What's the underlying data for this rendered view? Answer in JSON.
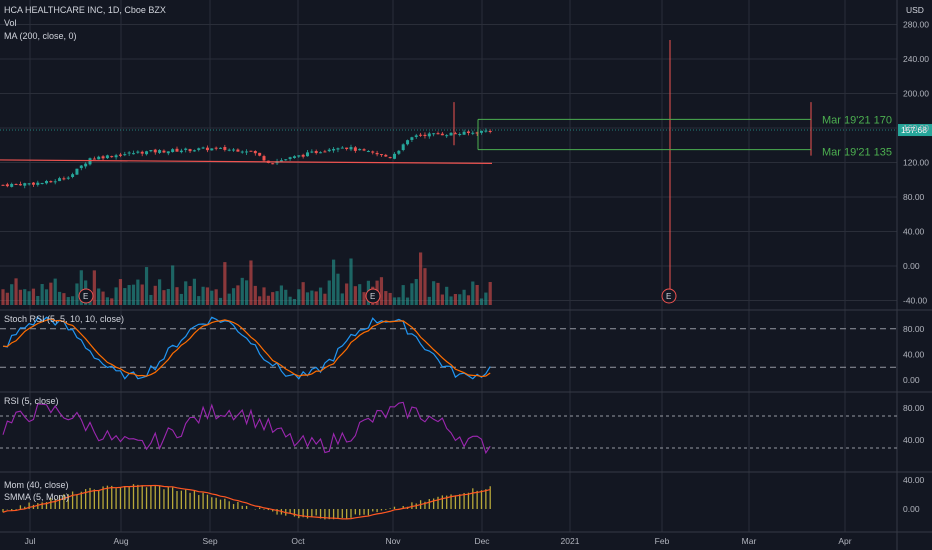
{
  "header": {
    "symbol_line": "HCA HEALTHCARE INC, 1D, Cboe BZX",
    "vol_label": "Vol",
    "ma_label": "MA (200, close, 0)",
    "currency": "USD",
    "current_price": "157.68"
  },
  "chart_data": [
    {
      "type": "candlestick",
      "panel": "price",
      "ylim": [
        -50,
        290
      ],
      "yticks": [
        280,
        240,
        200,
        160,
        120,
        80,
        40,
        0,
        -40
      ],
      "ytick_labels": [
        "280.00",
        "240.00",
        "200.00",
        "160.00",
        "120.00",
        "80.00",
        "40.00",
        "0.00",
        "-40.00"
      ],
      "x_labels": [
        "Jul",
        "Aug",
        "Sep",
        "Oct",
        "Nov",
        "Dec",
        "2021",
        "Feb",
        "Mar",
        "Apr"
      ],
      "price_close_approx": {
        "jul_start": 94,
        "jul_mid": 97,
        "aug_start": 125,
        "sep_start": 136,
        "sep_mid": 134,
        "sep_end": 120,
        "oct_start": 125,
        "oct_mid": 139,
        "nov_start": 126,
        "nov_mid": 153,
        "dec_start": 157.68
      },
      "ma200": {
        "start": 123,
        "end": 119
      },
      "annotations": [
        {
          "label": "Mar 19'21 170",
          "value": 170,
          "color": "#4caf50"
        },
        {
          "label": "Mar 19'21 135",
          "value": 135,
          "color": "#4caf50"
        }
      ],
      "earnings_markers": [
        "E",
        "E",
        "E"
      ],
      "grid": true
    },
    {
      "type": "line",
      "panel": "stoch_rsi",
      "title": "Stoch RSI (5, 5, 10, 10, close)",
      "ylim": [
        0,
        100
      ],
      "ytick_labels": [
        "80.00",
        "40.00",
        "0.00"
      ],
      "levels": [
        80,
        20
      ]
    },
    {
      "type": "line",
      "panel": "rsi",
      "title": "RSI (5, close)",
      "ylim": [
        10,
        95
      ],
      "ytick_labels": [
        "80.00",
        "40.00"
      ],
      "levels": [
        70,
        30
      ]
    },
    {
      "type": "bar",
      "panel": "momentum",
      "title": "Mom (40, close)",
      "subtitle": "SMMA (5, Mom)",
      "ylim": [
        -15,
        45
      ],
      "ytick_labels": [
        "40.00",
        "0.00"
      ]
    }
  ],
  "colors": {
    "background": "#131722",
    "grid": "#2a2e39",
    "up": "#26a69a",
    "down": "#ef5350",
    "stoch_k": "#2196f3",
    "stoch_d": "#ff6d00",
    "rsi": "#9c27b0",
    "mom_hist": "#b8a93a",
    "smma": "#ff5722",
    "annotation": "#4caf50",
    "price_label_bg": "#26a69a"
  }
}
